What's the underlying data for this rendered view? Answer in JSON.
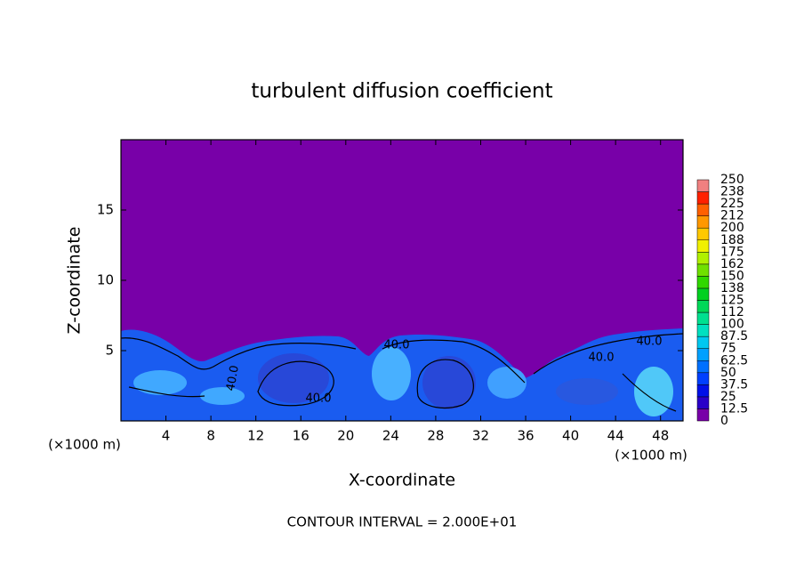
{
  "chart_data": {
    "type": "contour",
    "title": "turbulent diffusion coefficient",
    "xlabel": "X-coordinate",
    "ylabel": "Z-coordinate",
    "x_unit": "(×1000 m)",
    "note": "CONTOUR INTERVAL = 2.000E+01",
    "xlim": [
      0,
      50
    ],
    "xticks": [
      4,
      8,
      12,
      16,
      20,
      24,
      28,
      32,
      36,
      40,
      44,
      48
    ],
    "ylim": [
      0,
      20
    ],
    "yticks": [
      5,
      10,
      15
    ],
    "contour_labels": [
      "40.0",
      "40.0",
      "40.0",
      "40.0",
      "40.0"
    ],
    "colorbar": {
      "levels": [
        0,
        12.5,
        25,
        37.5,
        50,
        62.5,
        75,
        87.5,
        100,
        {
          "value": 112.5,
          "label": "112"
        },
        125,
        {
          "value": 137.5,
          "label": "138"
        },
        150,
        {
          "value": 162.5,
          "label": "162"
        },
        175,
        {
          "value": 187.5,
          "label": "188"
        },
        200,
        {
          "value": 212.5,
          "label": "212"
        },
        225,
        {
          "value": 237.5,
          "label": "238"
        },
        250
      ],
      "colors": [
        "#7800a8",
        "#2a00c8",
        "#0010e8",
        "#0040ff",
        "#0070ff",
        "#00a0ff",
        "#00c8f0",
        "#00e0c0",
        "#00e090",
        "#00d858",
        "#00d020",
        "#30d800",
        "#70e000",
        "#b0f000",
        "#f0f000",
        "#ffc800",
        "#ff9800",
        "#ff6000",
        "#ff2000",
        "#f08080"
      ]
    }
  }
}
